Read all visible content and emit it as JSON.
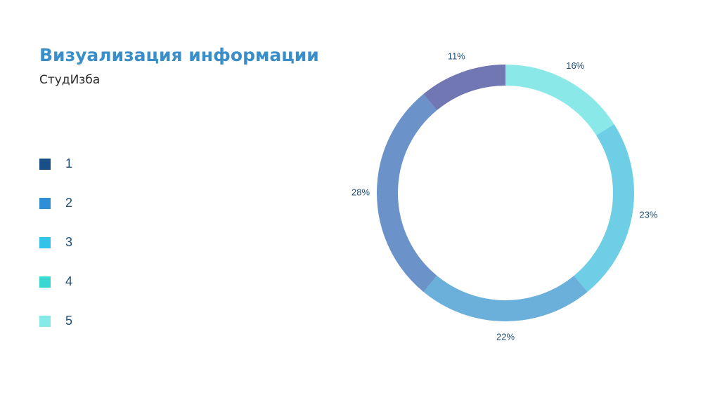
{
  "title": "Визуализация информации",
  "subtitle": "СтудИзба",
  "legend": [
    {
      "label": "1",
      "color": "#174f86"
    },
    {
      "label": "2",
      "color": "#2f8fd6"
    },
    {
      "label": "3",
      "color": "#33c2ea"
    },
    {
      "label": "4",
      "color": "#38d8d2"
    },
    {
      "label": "5",
      "color": "#86eae9"
    }
  ],
  "chart_data": {
    "type": "pie",
    "donut": true,
    "slices": [
      {
        "value": 16,
        "label": "16%",
        "color": "#8ae9e8"
      },
      {
        "value": 23,
        "label": "23%",
        "color": "#6dcee6"
      },
      {
        "value": 22,
        "label": "22%",
        "color": "#6ab0da"
      },
      {
        "value": 28,
        "label": "28%",
        "color": "#6b92c9"
      },
      {
        "value": 11,
        "label": "11%",
        "color": "#7177b2"
      }
    ]
  }
}
